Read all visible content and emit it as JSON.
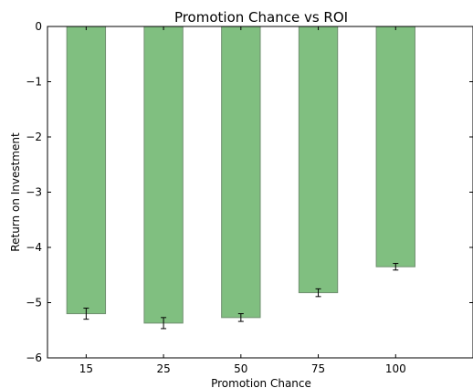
{
  "chart_data": {
    "type": "bar",
    "title": "Promotion Chance vs ROI",
    "xlabel": "Promotion Chance",
    "ylabel": "Return on Investment",
    "categories": [
      "15",
      "25",
      "50",
      "75",
      "100"
    ],
    "values": [
      -5.2,
      -5.37,
      -5.27,
      -4.82,
      -4.35
    ],
    "error": [
      0.1,
      0.1,
      0.07,
      0.07,
      0.06
    ],
    "ylim": [
      -6,
      0
    ],
    "yticks": [
      0,
      -1,
      -2,
      -3,
      -4,
      -5,
      -6
    ],
    "ytick_labels": [
      "0",
      "−1",
      "−2",
      "−3",
      "−4",
      "−5",
      "−6"
    ],
    "bar_color": "#80bf80",
    "bar_edge_color": "#6f8f6f",
    "grid": false,
    "legend": null
  }
}
